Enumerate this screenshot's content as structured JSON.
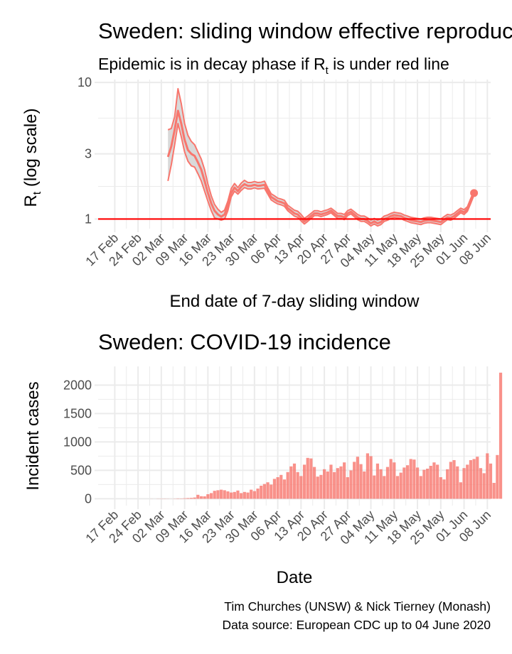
{
  "chart_data": [
    {
      "type": "line",
      "title": "Sweden: sliding window effective reproduction number",
      "subtitle": "Epidemic is in decay phase if R",
      "subtitle_sub": "t",
      "subtitle_rest": " is under red line",
      "xlabel": "End date of 7-day sliding window",
      "ylabel": "R",
      "ylabel_sub": "t",
      "ylabel_rest": " (log scale)",
      "y_scale": "log",
      "ylim": [
        0.85,
        10.5
      ],
      "xlim": [
        "2020-02-12",
        "2020-06-09"
      ],
      "y_ticks": [
        1,
        3,
        10
      ],
      "y_tick_labels": [
        "1",
        "3",
        "10"
      ],
      "x_ticks": [
        "2020-02-17",
        "2020-02-24",
        "2020-03-02",
        "2020-03-09",
        "2020-03-16",
        "2020-03-23",
        "2020-03-30",
        "2020-04-06",
        "2020-04-13",
        "2020-04-20",
        "2020-04-27",
        "2020-05-04",
        "2020-05-11",
        "2020-05-18",
        "2020-05-25",
        "2020-06-01",
        "2020-06-08"
      ],
      "x_tick_labels": [
        "17 Feb",
        "24 Feb",
        "02 Mar",
        "09 Mar",
        "16 Mar",
        "23 Mar",
        "30 Mar",
        "06 Apr",
        "13 Apr",
        "20 Apr",
        "27 Apr",
        "04 May",
        "11 May",
        "18 May",
        "25 May",
        "01 Jun",
        "08 Jun"
      ],
      "reference_line": {
        "y": 1,
        "color": "#ff0000"
      },
      "colors": {
        "line": "#f8766d",
        "ribbon_fill": "#d9d9d9",
        "ribbon_edge": "#f8766d"
      },
      "grid": true,
      "series": [
        {
          "x": [
            "2020-03-04",
            "2020-03-05",
            "2020-03-06",
            "2020-03-07",
            "2020-03-08",
            "2020-03-09",
            "2020-03-10",
            "2020-03-11",
            "2020-03-12",
            "2020-03-13",
            "2020-03-14",
            "2020-03-15",
            "2020-03-16",
            "2020-03-17",
            "2020-03-18",
            "2020-03-19",
            "2020-03-20",
            "2020-03-21",
            "2020-03-22",
            "2020-03-23",
            "2020-03-24",
            "2020-03-25",
            "2020-03-26",
            "2020-03-27",
            "2020-03-28",
            "2020-03-29",
            "2020-03-30",
            "2020-03-31",
            "2020-04-01",
            "2020-04-02",
            "2020-04-03",
            "2020-04-04",
            "2020-04-05",
            "2020-04-06",
            "2020-04-07",
            "2020-04-08",
            "2020-04-09",
            "2020-04-10",
            "2020-04-11",
            "2020-04-12",
            "2020-04-13",
            "2020-04-14",
            "2020-04-15",
            "2020-04-16",
            "2020-04-17",
            "2020-04-18",
            "2020-04-19",
            "2020-04-20",
            "2020-04-21",
            "2020-04-22",
            "2020-04-23",
            "2020-04-24",
            "2020-04-25",
            "2020-04-26",
            "2020-04-27",
            "2020-04-28",
            "2020-04-29",
            "2020-04-30",
            "2020-05-01",
            "2020-05-02",
            "2020-05-03",
            "2020-05-04",
            "2020-05-05",
            "2020-05-06",
            "2020-05-07",
            "2020-05-08",
            "2020-05-09",
            "2020-05-10",
            "2020-05-11",
            "2020-05-12",
            "2020-05-13",
            "2020-05-14",
            "2020-05-15",
            "2020-05-16",
            "2020-05-17",
            "2020-05-18",
            "2020-05-19",
            "2020-05-20",
            "2020-05-21",
            "2020-05-22",
            "2020-05-23",
            "2020-05-24",
            "2020-05-25",
            "2020-05-26",
            "2020-05-27",
            "2020-05-28",
            "2020-05-29",
            "2020-05-30",
            "2020-05-31",
            "2020-06-01",
            "2020-06-02",
            "2020-06-03",
            "2020-06-04"
          ],
          "mean": [
            2.85,
            3.4,
            4.5,
            6.2,
            5.0,
            3.8,
            3.2,
            3.0,
            2.9,
            2.6,
            2.3,
            1.9,
            1.55,
            1.3,
            1.15,
            1.08,
            1.04,
            1.08,
            1.25,
            1.55,
            1.7,
            1.6,
            1.72,
            1.8,
            1.75,
            1.75,
            1.78,
            1.75,
            1.76,
            1.78,
            1.6,
            1.45,
            1.4,
            1.35,
            1.33,
            1.3,
            1.2,
            1.15,
            1.1,
            1.08,
            1.02,
            0.96,
            1.0,
            1.05,
            1.1,
            1.1,
            1.08,
            1.1,
            1.12,
            1.15,
            1.1,
            1.05,
            1.05,
            1.03,
            1.1,
            1.13,
            1.08,
            1.03,
            1.0,
            1.0,
            0.97,
            0.93,
            0.96,
            0.93,
            0.95,
            1.0,
            1.02,
            1.05,
            1.07,
            1.06,
            1.05,
            1.02,
            1.0,
            0.98,
            0.97,
            0.96,
            0.95,
            0.97,
            0.98,
            0.98,
            0.97,
            0.96,
            0.95,
            0.99,
            1.03,
            1.02,
            1.05,
            1.1,
            1.15,
            1.12,
            1.18,
            1.35,
            1.55
          ],
          "lower": [
            1.9,
            2.5,
            3.5,
            5.0,
            4.0,
            3.1,
            2.65,
            2.45,
            2.4,
            2.15,
            1.9,
            1.6,
            1.35,
            1.15,
            1.02,
            1.0,
            0.98,
            1.0,
            1.15,
            1.45,
            1.6,
            1.52,
            1.62,
            1.7,
            1.66,
            1.66,
            1.69,
            1.66,
            1.67,
            1.68,
            1.52,
            1.38,
            1.33,
            1.29,
            1.27,
            1.24,
            1.15,
            1.1,
            1.05,
            1.03,
            0.97,
            0.92,
            0.96,
            1.01,
            1.06,
            1.06,
            1.04,
            1.06,
            1.08,
            1.11,
            1.06,
            1.01,
            1.01,
            0.99,
            1.06,
            1.09,
            1.04,
            0.99,
            0.96,
            0.96,
            0.93,
            0.89,
            0.92,
            0.89,
            0.91,
            0.96,
            0.98,
            1.01,
            1.03,
            1.02,
            1.01,
            0.98,
            0.96,
            0.94,
            0.93,
            0.92,
            0.91,
            0.93,
            0.94,
            0.94,
            0.93,
            0.92,
            0.91,
            0.95,
            0.99,
            0.98,
            1.01,
            1.06,
            1.11,
            1.08,
            1.14,
            1.3,
            1.5
          ],
          "upper": [
            4.5,
            4.6,
            5.6,
            9.0,
            7.0,
            5.0,
            4.1,
            3.7,
            3.5,
            3.1,
            2.75,
            2.3,
            1.8,
            1.48,
            1.28,
            1.18,
            1.12,
            1.16,
            1.35,
            1.67,
            1.82,
            1.7,
            1.83,
            1.92,
            1.85,
            1.85,
            1.88,
            1.85,
            1.86,
            1.89,
            1.69,
            1.53,
            1.48,
            1.42,
            1.4,
            1.37,
            1.26,
            1.21,
            1.16,
            1.14,
            1.08,
            1.01,
            1.05,
            1.1,
            1.15,
            1.15,
            1.13,
            1.15,
            1.17,
            1.2,
            1.15,
            1.1,
            1.1,
            1.08,
            1.15,
            1.18,
            1.13,
            1.08,
            1.05,
            1.05,
            1.02,
            0.98,
            1.01,
            0.98,
            1.0,
            1.05,
            1.07,
            1.1,
            1.12,
            1.11,
            1.1,
            1.07,
            1.05,
            1.03,
            1.02,
            1.01,
            1.0,
            1.02,
            1.03,
            1.03,
            1.02,
            1.01,
            1.0,
            1.04,
            1.08,
            1.07,
            1.1,
            1.15,
            1.2,
            1.17,
            1.23,
            1.41,
            1.61
          ],
          "end_point": {
            "x": "2020-06-04",
            "y": 1.55
          }
        }
      ]
    },
    {
      "type": "bar",
      "title": "Sweden: COVID-19 incidence",
      "xlabel": "Date",
      "ylabel": "Incident cases",
      "ylim": [
        -120,
        2330
      ],
      "xlim": [
        "2020-02-12",
        "2020-06-09"
      ],
      "y_ticks": [
        0,
        500,
        1000,
        1500,
        2000
      ],
      "y_tick_labels": [
        "0",
        "500",
        "1000",
        "1500",
        "2000"
      ],
      "x_ticks": [
        "2020-02-17",
        "2020-02-24",
        "2020-03-02",
        "2020-03-09",
        "2020-03-16",
        "2020-03-23",
        "2020-03-30",
        "2020-04-06",
        "2020-04-13",
        "2020-04-20",
        "2020-04-27",
        "2020-05-04",
        "2020-05-11",
        "2020-05-18",
        "2020-05-25",
        "2020-06-01",
        "2020-06-08"
      ],
      "x_tick_labels": [
        "17 Feb",
        "24 Feb",
        "02 Mar",
        "09 Mar",
        "16 Mar",
        "23 Mar",
        "30 Mar",
        "06 Apr",
        "13 Apr",
        "20 Apr",
        "27 Apr",
        "04 May",
        "11 May",
        "18 May",
        "25 May",
        "01 Jun",
        "08 Jun"
      ],
      "colors": {
        "bar": "#f8766d"
      },
      "grid": true,
      "start_date": "2020-02-17",
      "values": [
        0,
        0,
        0,
        0,
        0,
        0,
        0,
        0,
        0,
        0,
        0,
        1,
        0,
        2,
        3,
        3,
        2,
        1,
        3,
        6,
        5,
        9,
        12,
        15,
        22,
        70,
        45,
        43,
        80,
        100,
        140,
        150,
        160,
        150,
        130,
        110,
        120,
        145,
        100,
        120,
        110,
        160,
        135,
        180,
        230,
        260,
        290,
        250,
        350,
        380,
        420,
        340,
        470,
        570,
        620,
        470,
        400,
        600,
        720,
        710,
        560,
        390,
        420,
        520,
        480,
        600,
        470,
        540,
        570,
        640,
        380,
        500,
        650,
        740,
        610,
        480,
        800,
        750,
        410,
        620,
        520,
        400,
        560,
        700,
        640,
        400,
        460,
        550,
        590,
        700,
        690,
        550,
        400,
        510,
        530,
        580,
        640,
        600,
        380,
        340,
        520,
        650,
        680,
        570,
        290,
        540,
        600,
        680,
        700,
        740,
        540,
        450,
        800,
        620,
        280,
        770,
        2220
      ]
    }
  ],
  "caption": {
    "line1": "Tim Churches (UNSW) & Nick Tierney (Monash)",
    "line2": "Data source: European CDC up to 04 June 2020"
  }
}
